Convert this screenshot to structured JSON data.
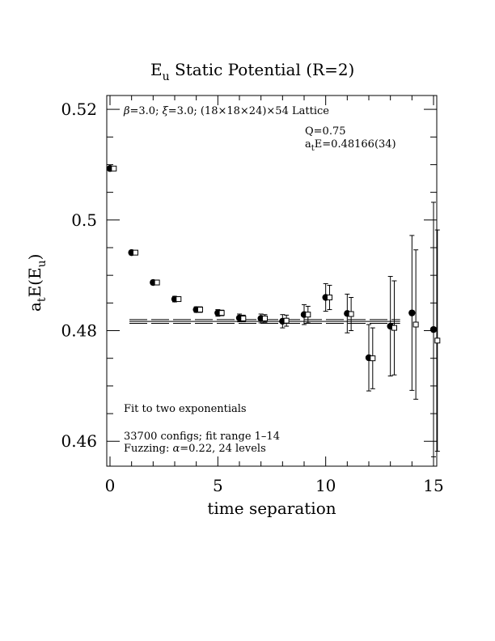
{
  "chart_data": {
    "type": "scatter",
    "title": "E",
    "title_sub": "u",
    "title_rest": " Static Potential (R=2)",
    "xlabel": "time separation",
    "ylabel_parts": {
      "a": "a",
      "t": "t",
      "mid": "E(E",
      "u": "u",
      "end": ")"
    },
    "xlim": [
      -0.15,
      15.15
    ],
    "ylim": [
      0.4555,
      0.5225
    ],
    "xticks": [
      0,
      5,
      10,
      15
    ],
    "xtick_labels": [
      "0",
      "5",
      "10",
      "15"
    ],
    "yticks": [
      0.46,
      0.48,
      0.5,
      0.52
    ],
    "ytick_labels": [
      "0.46",
      "0.48",
      "0.5",
      "0.52"
    ],
    "grid": false,
    "annotations": {
      "lattice_beta": "β",
      "lattice_text1": "=3.0; ",
      "lattice_xi": "ξ",
      "lattice_text2": "=3.0; (18×18×24)×54 Lattice",
      "q_value": "Q=0.75",
      "energy_a": "a",
      "energy_t": "t",
      "energy_rest": "E=0.48166(34)",
      "fit_note": "Fit to two exponentials",
      "configs": "33700 configs; fit range 1–14",
      "fuzzing_label": "Fuzzing: ",
      "fuzzing_alpha": "α",
      "fuzzing_rest": "=0.22, 24 levels"
    },
    "fit": {
      "value": 0.48166,
      "error": 0.00034,
      "x_range": [
        1,
        14
      ]
    },
    "series": [
      {
        "marker": "filled-circle",
        "x": [
          0,
          1,
          2,
          3,
          4,
          5,
          6,
          7,
          8,
          9,
          10,
          11,
          12,
          13,
          14,
          15
        ],
        "y": [
          0.5093,
          0.4941,
          0.4887,
          0.4857,
          0.4838,
          0.4832,
          0.4823,
          0.4822,
          0.4817,
          0.4829,
          0.486,
          0.4831,
          0.4751,
          0.4808,
          0.4832,
          0.4802
        ],
        "err": [
          0.0004,
          0.0004,
          0.0004,
          0.0005,
          0.0005,
          0.0006,
          0.0007,
          0.0008,
          0.0012,
          0.0018,
          0.0025,
          0.0035,
          0.006,
          0.009,
          0.014,
          0.023
        ]
      },
      {
        "marker": "open-square",
        "x": [
          0,
          1,
          2,
          3,
          4,
          5,
          6,
          7,
          8,
          9,
          10,
          11,
          12,
          13,
          14,
          15
        ],
        "y": [
          0.5093,
          0.4941,
          0.4887,
          0.4857,
          0.4838,
          0.4832,
          0.4822,
          0.4822,
          0.4818,
          0.4829,
          0.486,
          0.483,
          0.475,
          0.4805,
          0.4811,
          0.4782
        ],
        "err": [
          0.0003,
          0.0003,
          0.0004,
          0.0004,
          0.0005,
          0.0005,
          0.0006,
          0.0007,
          0.001,
          0.0015,
          0.0022,
          0.003,
          0.0055,
          0.0085,
          0.0135,
          0.02
        ]
      }
    ]
  }
}
